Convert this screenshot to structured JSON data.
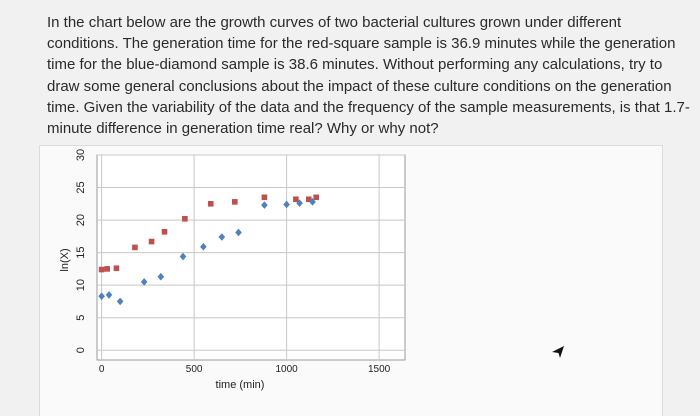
{
  "question": {
    "lines": [
      "In the chart below are the growth curves of two bacterial cultures grown under different",
      "conditions. The generation time for the red-square sample is 36.9 minutes while the generation",
      "time for the blue-diamond sample is 38.6 minutes. Without performing any calculations, try to",
      "draw some general conclusions about the impact of these culture conditions on the generation",
      "time. Given the variability of the data and the frequency of the sample measurements, is that 1.7-",
      "minute difference in generation time real? Why or why not?"
    ]
  },
  "chart_data": {
    "type": "scatter",
    "title": "",
    "xlabel": "time (min)",
    "ylabel": "ln(X)",
    "xlim": [
      -25,
      1640
    ],
    "ylim": [
      -1.5,
      30
    ],
    "xticks": [
      0,
      500,
      1000,
      1500
    ],
    "yticks": [
      0,
      5,
      10,
      15,
      20,
      25,
      30
    ],
    "grid": true,
    "series": [
      {
        "marker": "square",
        "color": "#c0504d",
        "points": [
          [
            0,
            12.4
          ],
          [
            30,
            12.5
          ],
          [
            80,
            12.6
          ],
          [
            180,
            15.8
          ],
          [
            270,
            16.7
          ],
          [
            340,
            18.2
          ],
          [
            450,
            20.2
          ],
          [
            590,
            22.5
          ],
          [
            720,
            22.8
          ],
          [
            880,
            23.5
          ],
          [
            1050,
            23.2
          ],
          [
            1120,
            23.2
          ],
          [
            1160,
            23.5
          ]
        ]
      },
      {
        "marker": "diamond",
        "color": "#4f81bd",
        "points": [
          [
            0,
            8.3
          ],
          [
            40,
            8.5
          ],
          [
            100,
            7.5
          ],
          [
            230,
            10.5
          ],
          [
            320,
            11.3
          ],
          [
            440,
            14.4
          ],
          [
            550,
            15.9
          ],
          [
            650,
            17.4
          ],
          [
            740,
            18.1
          ],
          [
            880,
            22.3
          ],
          [
            1000,
            22.4
          ],
          [
            1070,
            22.6
          ],
          [
            1140,
            22.8
          ]
        ]
      }
    ]
  }
}
